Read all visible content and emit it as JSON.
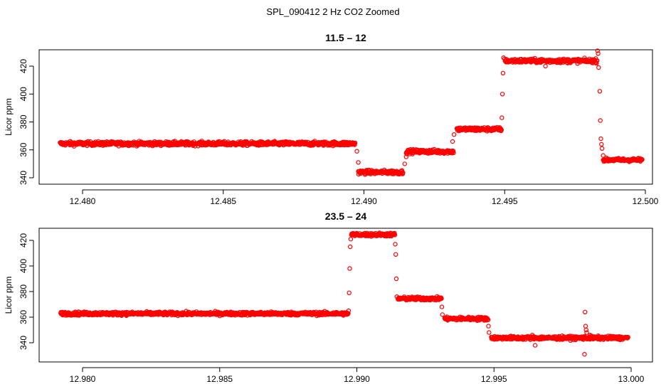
{
  "figure": {
    "suptitle": "SPL_090412  2 Hz CO2 Zoomed"
  },
  "style": {
    "marker_color": "#ff0000",
    "axis_color": "#000000"
  },
  "chart_data": [
    {
      "type": "scatter",
      "title": "11.5 – 12",
      "xlabel": "",
      "ylabel": "Licor ppm",
      "xlim": [
        12.4792,
        12.5
      ],
      "ylim": [
        340,
        430
      ],
      "x_ticks": [
        12.48,
        12.485,
        12.49,
        12.495,
        12.5
      ],
      "x_tick_labels": [
        "12.480",
        "12.485",
        "12.490",
        "12.495",
        "12.500"
      ],
      "y_ticks": [
        340,
        360,
        380,
        400,
        420
      ],
      "y_tick_labels": [
        "340",
        "360",
        "380",
        "400",
        "420"
      ],
      "grid": false,
      "marker": "open-circle",
      "segments": [
        {
          "x": [
            12.4792,
            12.4897
          ],
          "y": 364.5,
          "noise": 1.2
        },
        {
          "x": [
            12.4898,
            12.4914
          ],
          "y": 344.0,
          "noise": 1.2
        },
        {
          "x": [
            12.4915,
            12.4932
          ],
          "y": 358.8,
          "noise": 1.2
        },
        {
          "x": [
            12.4933,
            12.4949
          ],
          "y": 374.8,
          "noise": 1.2
        },
        {
          "x": [
            12.495,
            12.4983
          ],
          "y": 423.8,
          "noise": 1.2
        },
        {
          "x": [
            12.4985,
            12.4999
          ],
          "y": 352.8,
          "noise": 1.0
        }
      ],
      "transitions": [
        {
          "x": 12.48975,
          "y": 359
        },
        {
          "x": 12.4898,
          "y": 351
        },
        {
          "x": 12.49145,
          "y": 350
        },
        {
          "x": 12.4915,
          "y": 355
        },
        {
          "x": 12.49315,
          "y": 366
        },
        {
          "x": 12.4932,
          "y": 371
        },
        {
          "x": 12.4949,
          "y": 383
        },
        {
          "x": 12.49492,
          "y": 400
        },
        {
          "x": 12.49494,
          "y": 415
        },
        {
          "x": 12.49496,
          "y": 426
        },
        {
          "x": 12.49645,
          "y": 420
        },
        {
          "x": 12.4983,
          "y": 431
        },
        {
          "x": 12.49832,
          "y": 429
        },
        {
          "x": 12.49834,
          "y": 419
        },
        {
          "x": 12.49838,
          "y": 402
        },
        {
          "x": 12.4984,
          "y": 381
        },
        {
          "x": 12.49842,
          "y": 368
        },
        {
          "x": 12.49844,
          "y": 364
        },
        {
          "x": 12.49846,
          "y": 361
        },
        {
          "x": 12.4985,
          "y": 356
        }
      ]
    },
    {
      "type": "scatter",
      "title": "23.5 – 24",
      "xlabel": "",
      "ylabel": "Licor ppm",
      "xlim": [
        12.9792,
        13.0
      ],
      "ylim": [
        330,
        430
      ],
      "x_ticks": [
        12.98,
        12.985,
        12.99,
        12.995,
        13.0
      ],
      "x_tick_labels": [
        "12.980",
        "12.985",
        "12.990",
        "12.995",
        "13.000"
      ],
      "y_ticks": [
        340,
        360,
        380,
        400,
        420
      ],
      "y_tick_labels": [
        "340",
        "360",
        "380",
        "400",
        "420"
      ],
      "grid": false,
      "marker": "open-circle",
      "segments": [
        {
          "x": [
            12.9792,
            12.9897
          ],
          "y": 362.8,
          "noise": 1.1
        },
        {
          "x": [
            12.9898,
            12.9914
          ],
          "y": 424.5,
          "noise": 1.1
        },
        {
          "x": [
            12.9915,
            12.9931
          ],
          "y": 374.5,
          "noise": 1.1
        },
        {
          "x": [
            12.9932,
            12.9948
          ],
          "y": 358.8,
          "noise": 1.1
        },
        {
          "x": [
            12.9949,
            12.9999
          ],
          "y": 343.8,
          "noise": 1.1
        }
      ],
      "transitions": [
        {
          "x": 12.9897,
          "y": 365
        },
        {
          "x": 12.98972,
          "y": 379
        },
        {
          "x": 12.98974,
          "y": 398
        },
        {
          "x": 12.98976,
          "y": 415
        },
        {
          "x": 12.98978,
          "y": 421
        },
        {
          "x": 12.9914,
          "y": 417
        },
        {
          "x": 12.99142,
          "y": 409
        },
        {
          "x": 12.99144,
          "y": 390
        },
        {
          "x": 12.99146,
          "y": 376
        },
        {
          "x": 12.9931,
          "y": 368
        },
        {
          "x": 12.99312,
          "y": 362
        },
        {
          "x": 12.9948,
          "y": 353
        },
        {
          "x": 12.99482,
          "y": 348
        },
        {
          "x": 12.9965,
          "y": 338
        },
        {
          "x": 12.9964,
          "y": 346
        },
        {
          "x": 12.9983,
          "y": 331
        },
        {
          "x": 12.99832,
          "y": 364
        },
        {
          "x": 12.99834,
          "y": 353
        },
        {
          "x": 12.99836,
          "y": 350
        },
        {
          "x": 12.99838,
          "y": 348
        },
        {
          "x": 12.9985,
          "y": 346
        },
        {
          "x": 12.9993,
          "y": 345
        }
      ]
    }
  ]
}
